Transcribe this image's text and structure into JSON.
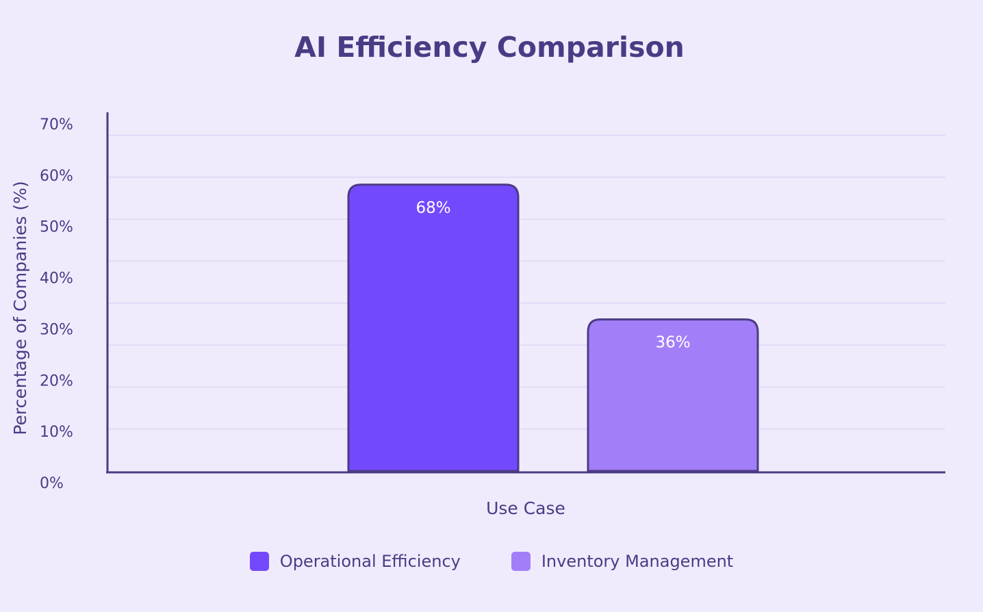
{
  "chart_data": {
    "type": "bar",
    "title": "AI Efficiency Comparison",
    "xlabel": "Use Case",
    "ylabel": "Percentage of Companies (%)",
    "ylim": [
      0,
      70
    ],
    "y_tick_labels": [
      "0%",
      "10%",
      "20%",
      "30%",
      "40%",
      "50%",
      "60%",
      "70%"
    ],
    "grid": true,
    "legend_position": "bottom",
    "series": [
      {
        "name": "Operational Efficiency",
        "value": 68,
        "data_label": "68%",
        "color": "#7349fe"
      },
      {
        "name": "Inventory Management",
        "value": 36,
        "data_label": "36%",
        "color": "#a27ff8"
      }
    ]
  },
  "colors": {
    "background": "#f0ebfc",
    "axis": "#4b3b85",
    "grid": "#ddd6f7",
    "text": "#4b3b85"
  }
}
